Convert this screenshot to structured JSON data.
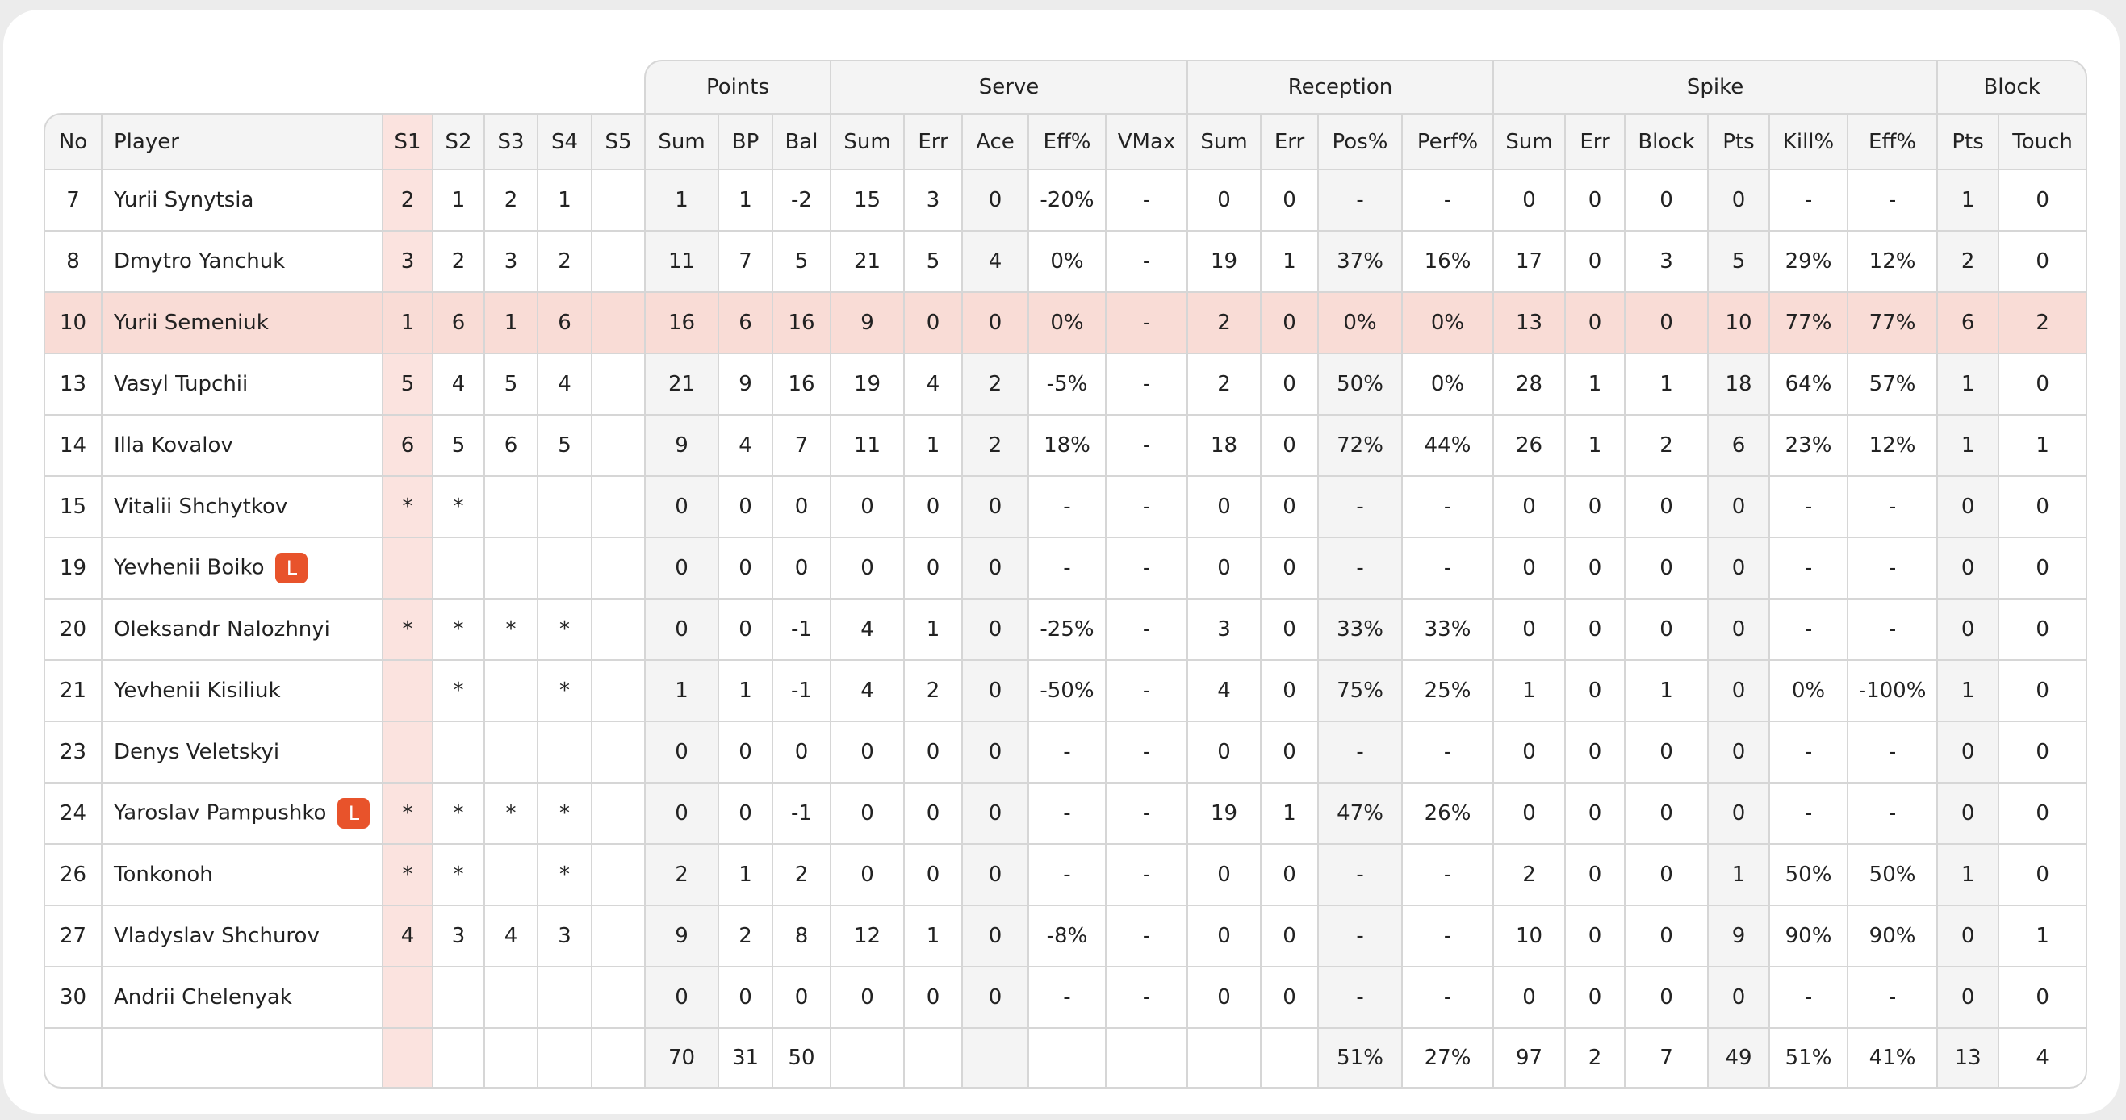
{
  "table": {
    "groups": [
      "Points",
      "Serve",
      "Reception",
      "Spike",
      "Block"
    ],
    "group_spans": [
      3,
      5,
      4,
      6,
      2
    ],
    "columns": [
      "No",
      "Player",
      "S1",
      "S2",
      "S3",
      "S4",
      "S5",
      "Sum",
      "BP",
      "Bal",
      "Sum",
      "Err",
      "Ace",
      "Eff%",
      "VMax",
      "Sum",
      "Err",
      "Pos%",
      "Perf%",
      "Sum",
      "Err",
      "Block",
      "Pts",
      "Kill%",
      "Eff%",
      "Pts",
      "Touch"
    ],
    "highlighted_row": 2,
    "rows": [
      {
        "cells": [
          "7",
          "Yurii Synytsia",
          "2",
          "1",
          "2",
          "1",
          null,
          "1",
          "1",
          "-2",
          "15",
          "3",
          "0",
          "-20%",
          "-",
          "0",
          "0",
          "-",
          "-",
          "0",
          "0",
          "0",
          "0",
          "-",
          "-",
          "1",
          "0"
        ]
      },
      {
        "cells": [
          "8",
          "Dmytro Yanchuk",
          "3",
          "2",
          "3",
          "2",
          null,
          "11",
          "7",
          "5",
          "21",
          "5",
          "4",
          "0%",
          "-",
          "19",
          "1",
          "37%",
          "16%",
          "17",
          "0",
          "3",
          "5",
          "29%",
          "12%",
          "2",
          "0"
        ]
      },
      {
        "cells": [
          "10",
          "Yurii Semeniuk",
          "1",
          "6",
          "1",
          "6",
          null,
          "16",
          "6",
          "16",
          "9",
          "0",
          "0",
          "0%",
          "-",
          "2",
          "0",
          "0%",
          "0%",
          "13",
          "0",
          "0",
          "10",
          "77%",
          "77%",
          "6",
          "2"
        ]
      },
      {
        "cells": [
          "13",
          "Vasyl Tupchii",
          "5",
          "4",
          "5",
          "4",
          null,
          "21",
          "9",
          "16",
          "19",
          "4",
          "2",
          "-5%",
          "-",
          "2",
          "0",
          "50%",
          "0%",
          "28",
          "1",
          "1",
          "18",
          "64%",
          "57%",
          "1",
          "0"
        ]
      },
      {
        "cells": [
          "14",
          "Illa Kovalov",
          "6",
          "5",
          "6",
          "5",
          null,
          "9",
          "4",
          "7",
          "11",
          "1",
          "2",
          "18%",
          "-",
          "18",
          "0",
          "72%",
          "44%",
          "26",
          "1",
          "2",
          "6",
          "23%",
          "12%",
          "1",
          "1"
        ]
      },
      {
        "cells": [
          "15",
          "Vitalii Shchytkov",
          "*",
          "*",
          null,
          null,
          null,
          "0",
          "0",
          "0",
          "0",
          "0",
          "0",
          "-",
          "-",
          "0",
          "0",
          "-",
          "-",
          "0",
          "0",
          "0",
          "0",
          "-",
          "-",
          "0",
          "0"
        ]
      },
      {
        "cells": [
          "19",
          "Yevhenii Boiko",
          null,
          null,
          null,
          null,
          null,
          "0",
          "0",
          "0",
          "0",
          "0",
          "0",
          "-",
          "-",
          "0",
          "0",
          "-",
          "-",
          "0",
          "0",
          "0",
          "0",
          "-",
          "-",
          "0",
          "0"
        ],
        "badge": "L"
      },
      {
        "cells": [
          "20",
          "Oleksandr Nalozhnyi",
          "*",
          "*",
          "*",
          "*",
          null,
          "0",
          "0",
          "-1",
          "4",
          "1",
          "0",
          "-25%",
          "-",
          "3",
          "0",
          "33%",
          "33%",
          "0",
          "0",
          "0",
          "0",
          "-",
          "-",
          "0",
          "0"
        ]
      },
      {
        "cells": [
          "21",
          "Yevhenii Kisiliuk",
          null,
          "*",
          null,
          "*",
          null,
          "1",
          "1",
          "-1",
          "4",
          "2",
          "0",
          "-50%",
          "-",
          "4",
          "0",
          "75%",
          "25%",
          "1",
          "0",
          "1",
          "0",
          "0%",
          "-100%",
          "1",
          "0"
        ]
      },
      {
        "cells": [
          "23",
          "Denys Veletskyi",
          null,
          null,
          null,
          null,
          null,
          "0",
          "0",
          "0",
          "0",
          "0",
          "0",
          "-",
          "-",
          "0",
          "0",
          "-",
          "-",
          "0",
          "0",
          "0",
          "0",
          "-",
          "-",
          "0",
          "0"
        ]
      },
      {
        "cells": [
          "24",
          "Yaroslav Pampushko",
          "*",
          "*",
          "*",
          "*",
          null,
          "0",
          "0",
          "-1",
          "0",
          "0",
          "0",
          "-",
          "-",
          "19",
          "1",
          "47%",
          "26%",
          "0",
          "0",
          "0",
          "0",
          "-",
          "-",
          "0",
          "0"
        ],
        "badge": "L"
      },
      {
        "cells": [
          "26",
          "Tonkonoh",
          "*",
          "*",
          null,
          "*",
          null,
          "2",
          "1",
          "2",
          "0",
          "0",
          "0",
          "-",
          "-",
          "0",
          "0",
          "-",
          "-",
          "2",
          "0",
          "0",
          "1",
          "50%",
          "50%",
          "1",
          "0"
        ]
      },
      {
        "cells": [
          "27",
          "Vladyslav Shchurov",
          "4",
          "3",
          "4",
          "3",
          null,
          "9",
          "2",
          "8",
          "12",
          "1",
          "0",
          "-8%",
          "-",
          "0",
          "0",
          "-",
          "-",
          "10",
          "0",
          "0",
          "9",
          "90%",
          "90%",
          "0",
          "1"
        ]
      },
      {
        "cells": [
          "30",
          "Andrii Chelenyak",
          null,
          null,
          null,
          null,
          null,
          "0",
          "0",
          "0",
          "0",
          "0",
          "0",
          "-",
          "-",
          "0",
          "0",
          "-",
          "-",
          "0",
          "0",
          "0",
          "0",
          "-",
          "-",
          "0",
          "0"
        ]
      }
    ],
    "totals": [
      null,
      null,
      null,
      null,
      null,
      null,
      null,
      "70",
      "31",
      "50",
      null,
      null,
      null,
      null,
      null,
      null,
      null,
      "51%",
      "27%",
      "97",
      "2",
      "7",
      "49",
      "51%",
      "41%",
      "13",
      "4"
    ]
  }
}
